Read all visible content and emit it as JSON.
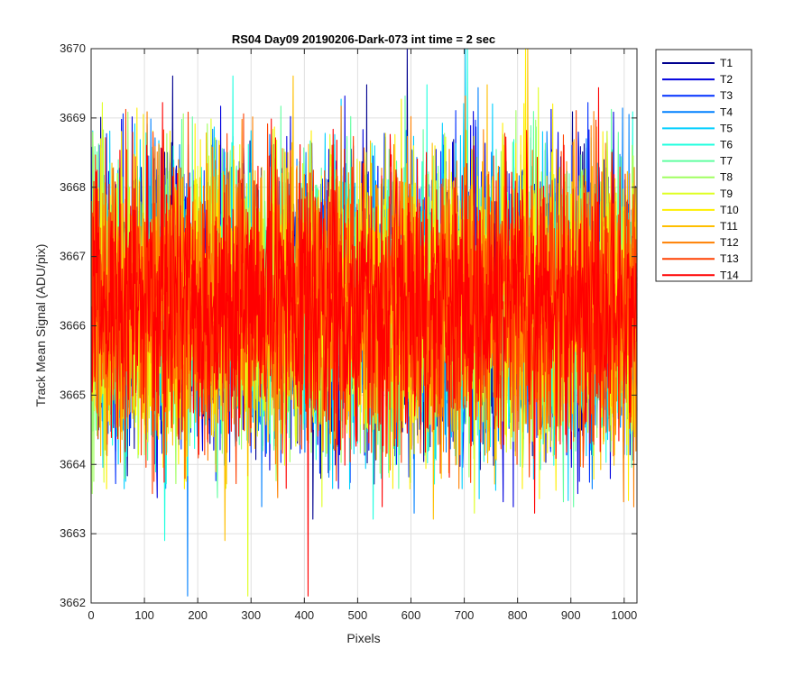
{
  "chart_data": {
    "type": "line",
    "title": "RS04 Day09 20190206-Dark-073 int time = 2 sec",
    "xlabel": "Pixels",
    "ylabel": "Track Mean Signal (ADU/pix)",
    "xlim": [
      0,
      1024
    ],
    "ylim": [
      3662,
      3670
    ],
    "x_ticks": [
      0,
      100,
      200,
      300,
      400,
      500,
      600,
      700,
      800,
      900,
      1000
    ],
    "y_ticks": [
      3662,
      3663,
      3664,
      3665,
      3666,
      3667,
      3668,
      3669,
      3670
    ],
    "x_tick_labels": [
      "0",
      "100",
      "200",
      "300",
      "400",
      "500",
      "600",
      "700",
      "800",
      "900",
      "1000"
    ],
    "y_tick_labels": [
      "3662",
      "3663",
      "3664",
      "3665",
      "3666",
      "3667",
      "3668",
      "3669",
      "3670"
    ],
    "grid": true,
    "legend_position": "outside-top-right",
    "series_summary": {
      "num_points": 1024,
      "x_start": 1,
      "x_step": 1,
      "mean": 3666.3,
      "std": 1.0,
      "min": 3662.1,
      "max": 3670.0
    },
    "series": [
      {
        "name": "T1",
        "color": "#00008f"
      },
      {
        "name": "T2",
        "color": "#0000df"
      },
      {
        "name": "T3",
        "color": "#0030ff"
      },
      {
        "name": "T4",
        "color": "#0080ff"
      },
      {
        "name": "T5",
        "color": "#00cfff"
      },
      {
        "name": "T6",
        "color": "#20ffdf"
      },
      {
        "name": "T7",
        "color": "#60ffa0"
      },
      {
        "name": "T8",
        "color": "#a0ff60"
      },
      {
        "name": "T9",
        "color": "#dfff20"
      },
      {
        "name": "T10",
        "color": "#ffef00"
      },
      {
        "name": "T11",
        "color": "#ffbf00"
      },
      {
        "name": "T12",
        "color": "#ff8000"
      },
      {
        "name": "T13",
        "color": "#ff4000"
      },
      {
        "name": "T14",
        "color": "#ff0000"
      }
    ]
  }
}
